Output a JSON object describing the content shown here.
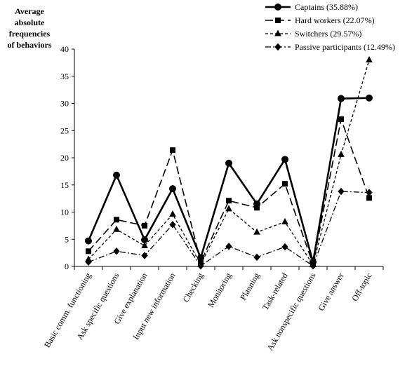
{
  "chart_data": {
    "type": "line",
    "ylabel_lines": [
      "Average",
      "absolute",
      "frequencies",
      "of behaviors"
    ],
    "ylim": [
      0,
      40
    ],
    "yticks": [
      0,
      5,
      10,
      15,
      20,
      25,
      30,
      35,
      40
    ],
    "categories": [
      "Basic comm. functioning",
      "Ask specific questions",
      "Give explanation",
      "Input new information",
      "Checking",
      "Monitoring",
      "Planning",
      "Task-related",
      "Ask nonspecific questions",
      "Give answer",
      "Off-topic"
    ],
    "grid": false,
    "legend_position": "top-right",
    "series": [
      {
        "name": "Captains (35.88%)",
        "marker": "circle",
        "line_style": "solid-thick",
        "values": [
          4.7,
          16.8,
          4.9,
          14.3,
          1.6,
          19.0,
          11.5,
          19.7,
          0.8,
          30.9,
          31.0
        ]
      },
      {
        "name": "Hard workers (22.07%)",
        "marker": "square",
        "line_style": "long-dash",
        "values": [
          2.8,
          8.6,
          7.5,
          21.4,
          0.8,
          12.1,
          10.8,
          15.2,
          0.4,
          27.1,
          12.6
        ]
      },
      {
        "name": "Switchers (29.57%)",
        "marker": "triangle",
        "line_style": "short-dash",
        "values": [
          1.3,
          6.8,
          3.8,
          9.6,
          0.4,
          10.6,
          6.3,
          8.2,
          0.3,
          20.6,
          38.0
        ]
      },
      {
        "name": "Passive participants (12.49%)",
        "marker": "diamond",
        "line_style": "dash-dot",
        "values": [
          0.8,
          2.8,
          2.0,
          7.7,
          0.1,
          3.7,
          1.7,
          3.6,
          0.1,
          13.8,
          13.6
        ]
      }
    ]
  }
}
